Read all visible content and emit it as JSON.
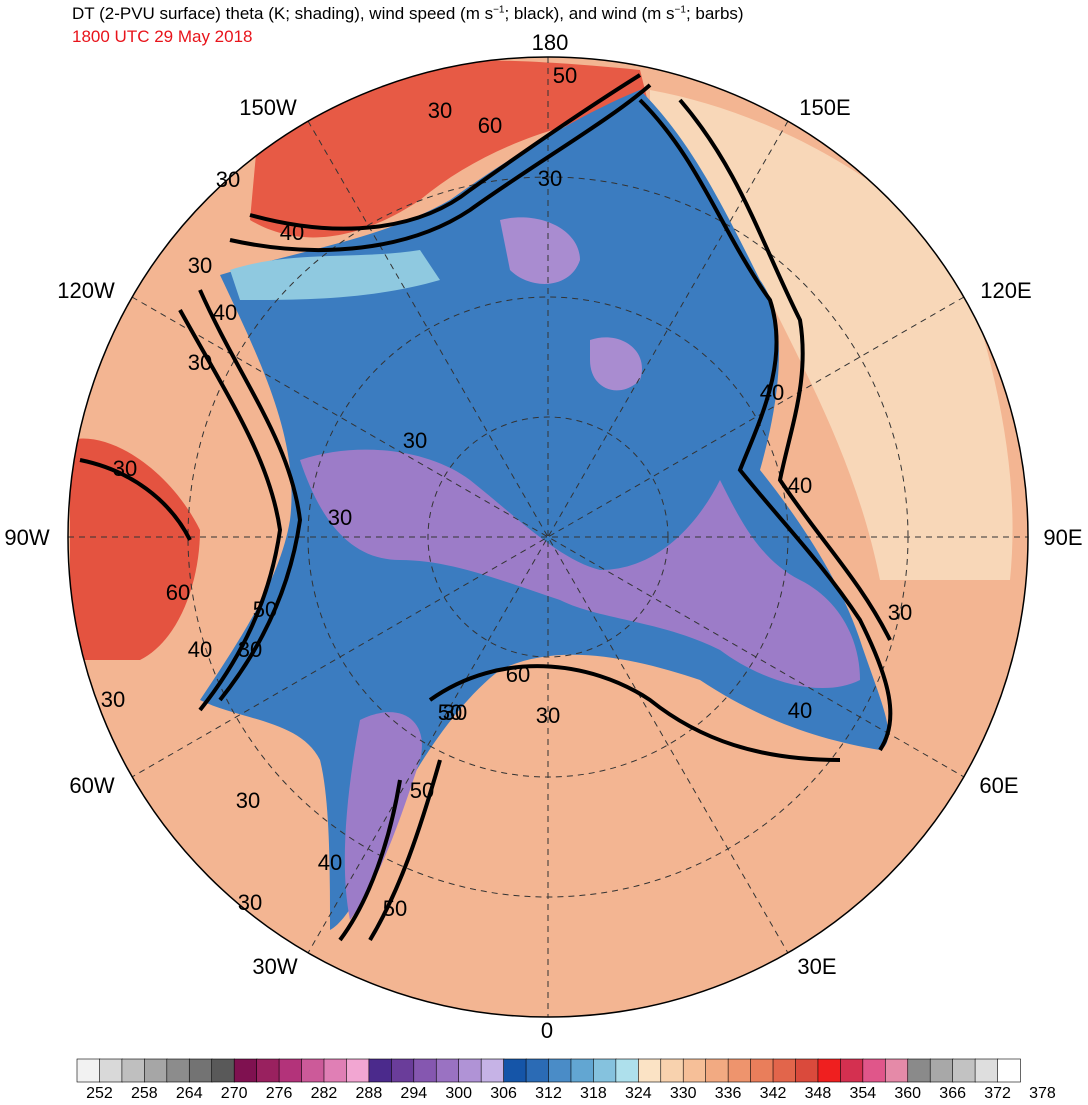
{
  "header": {
    "title": "DT (2-PVU surface) theta (K; shading), wind speed (m s",
    "title_sup1": "−1",
    "title_mid": "; black), and wind (m s",
    "title_sup2": "−1",
    "title_end": "; barbs)",
    "valid_time": "1800 UTC 29 May 2018"
  },
  "longitude_labels": {
    "lon_180": "180",
    "lon_150e": "150E",
    "lon_120e": "120E",
    "lon_90e": "90E",
    "lon_60e": "60E",
    "lon_30e": "30E",
    "lon_0": "0",
    "lon_30w": "30W",
    "lon_60w": "60W",
    "lon_90w": "90W",
    "lon_120w": "120W",
    "lon_150w": "150W"
  },
  "contour_labels": [
    "50",
    "30",
    "60",
    "30",
    "30",
    "40",
    "30",
    "40",
    "30",
    "30",
    "30",
    "30",
    "60",
    "50",
    "40",
    "30",
    "30",
    "30",
    "60",
    "50",
    "30",
    "40",
    "30",
    "50",
    "40",
    "40",
    "30",
    "40",
    "30",
    "50"
  ],
  "colorbar": {
    "tick_labels": [
      "252",
      "258",
      "264",
      "270",
      "276",
      "282",
      "288",
      "294",
      "300",
      "306",
      "312",
      "318",
      "324",
      "330",
      "336",
      "342",
      "348",
      "354",
      "360",
      "366",
      "372",
      "378"
    ],
    "colors": [
      "#f2f2f2",
      "#d9d9d9",
      "#bfbfbf",
      "#a6a6a6",
      "#8c8c8c",
      "#737373",
      "#595959",
      "#7f1150",
      "#99215f",
      "#b3337a",
      "#cc5a99",
      "#e07fb5",
      "#f2a6d2",
      "#4b2a8c",
      "#6a3d9a",
      "#8557b0",
      "#9a72c2",
      "#b093d6",
      "#c6b3e6",
      "#1555a8",
      "#2b6bb5",
      "#4a8cc7",
      "#62a6d2",
      "#85c2de",
      "#aee0ec",
      "#fbe3c5",
      "#f8d2ae",
      "#f6bf98",
      "#f2aa82",
      "#ee946d",
      "#e97e5b",
      "#e2654b",
      "#da4a3c",
      "#ef1f1f",
      "#d43050",
      "#e0568a",
      "#e58aa8",
      "#8a8a8a",
      "#a8a8a8",
      "#c2c2c2",
      "#dedede",
      "#ffffff"
    ]
  }
}
